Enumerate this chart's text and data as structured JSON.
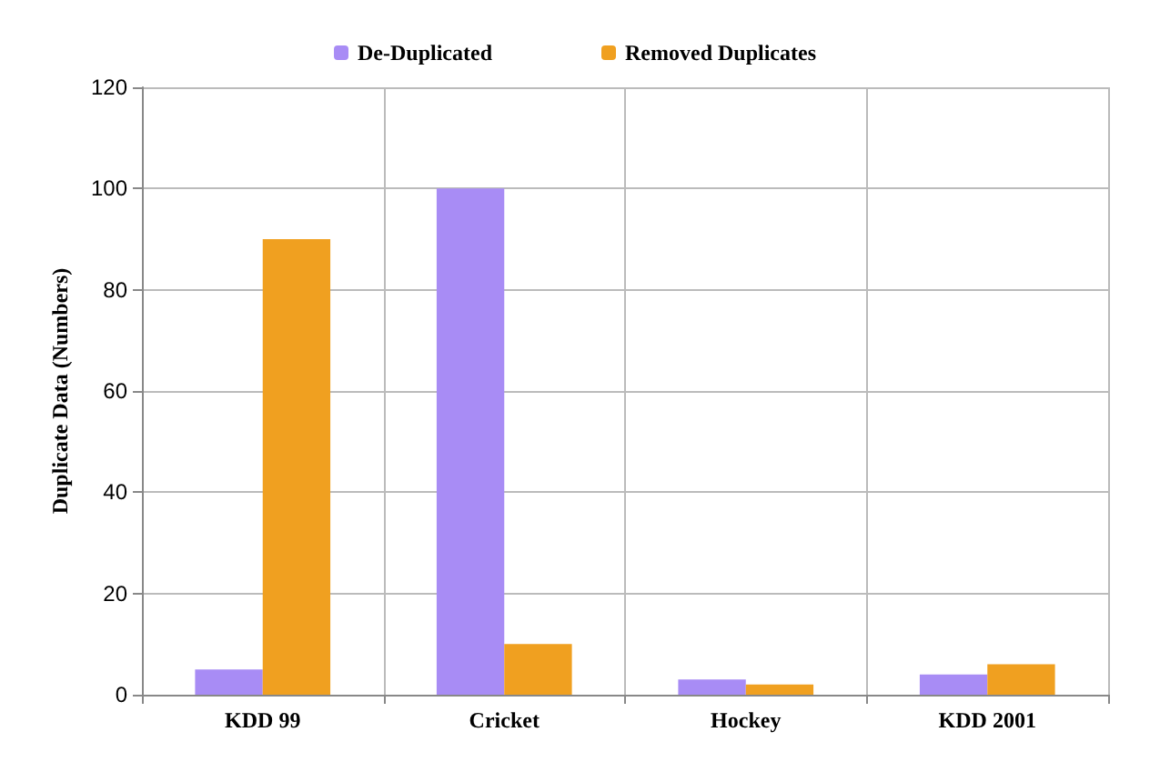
{
  "chart_data": {
    "type": "bar",
    "ylabel": "Duplicate Data (Numbers)",
    "categories": [
      "KDD 99",
      "Cricket",
      "Hockey",
      "KDD 2001"
    ],
    "series": [
      {
        "name": "De-Duplicated",
        "color": "#a88cf5",
        "values": [
          5,
          100,
          3,
          4
        ]
      },
      {
        "name": "Removed Duplicates",
        "color": "#f0a020",
        "values": [
          90,
          10,
          2,
          6
        ]
      }
    ],
    "ylim": [
      0,
      120
    ],
    "yticks": [
      0,
      20,
      40,
      60,
      80,
      100,
      120
    ],
    "grid": true,
    "legend": "top"
  }
}
